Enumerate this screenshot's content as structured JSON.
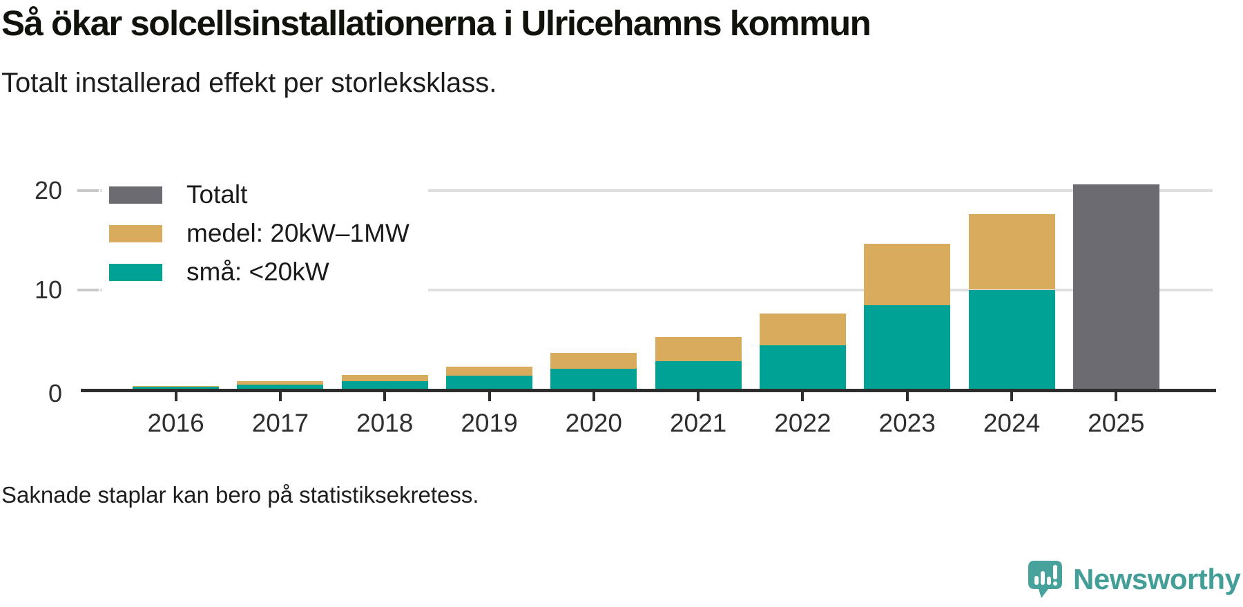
{
  "header": {
    "title": "Så ökar solcellsinstallationerna i Ulricehamns kommun",
    "subtitle": "Totalt installerad effekt per storleksklass."
  },
  "footer": {
    "note": "Saknade staplar kan bero på statistiksekretess."
  },
  "legend": {
    "items": [
      {
        "label": "Totalt",
        "color": "#6c6b71"
      },
      {
        "label": "medel: 20kW–1MW",
        "color": "#d9ab5c"
      },
      {
        "label": "små: <20kW",
        "color": "#00a296"
      }
    ]
  },
  "logo": {
    "text": "Newsworthy",
    "brand_color": "#429e97",
    "icon_color": "#47a29b",
    "icon": "newsworthy-speech-bubble-bar-chart-icon"
  },
  "chart_data": {
    "type": "bar",
    "stacked": true,
    "title": "Så ökar solcellsinstallationerna i Ulricehamns kommun",
    "subtitle": "Totalt installerad effekt per storleksklass.",
    "categories": [
      "2016",
      "2017",
      "2018",
      "2019",
      "2020",
      "2021",
      "2022",
      "2023",
      "2024",
      "2025"
    ],
    "series": [
      {
        "name": "små: <20kW",
        "color": "#00a296",
        "values": [
          0.2,
          0.4,
          0.8,
          1.3,
          2.0,
          2.8,
          4.4,
          8.4,
          10.0,
          null
        ]
      },
      {
        "name": "medel: 20kW–1MW",
        "color": "#d9ab5c",
        "values": [
          0.1,
          0.4,
          0.6,
          0.9,
          1.6,
          2.4,
          3.2,
          6.2,
          7.6,
          null
        ]
      },
      {
        "name": "Totalt",
        "color": "#6c6b71",
        "values": [
          null,
          null,
          null,
          null,
          null,
          null,
          null,
          null,
          null,
          20.6
        ]
      }
    ],
    "stacked_totals": [
      0.3,
      0.8,
      1.4,
      2.2,
      3.6,
      5.2,
      7.6,
      14.6,
      17.6,
      20.6
    ],
    "xlabel": "",
    "ylabel": "",
    "yticks": [
      0,
      10,
      20
    ],
    "ylim": [
      0,
      21
    ],
    "grid": "horizontal gridlines at 10 and 20",
    "legend_position": "top-left inside plot area",
    "note": "Saknade staplar kan bero på statistiksekretess.",
    "axis_color": "#2d2d2d",
    "gridline_color": "#dfdfdf"
  }
}
